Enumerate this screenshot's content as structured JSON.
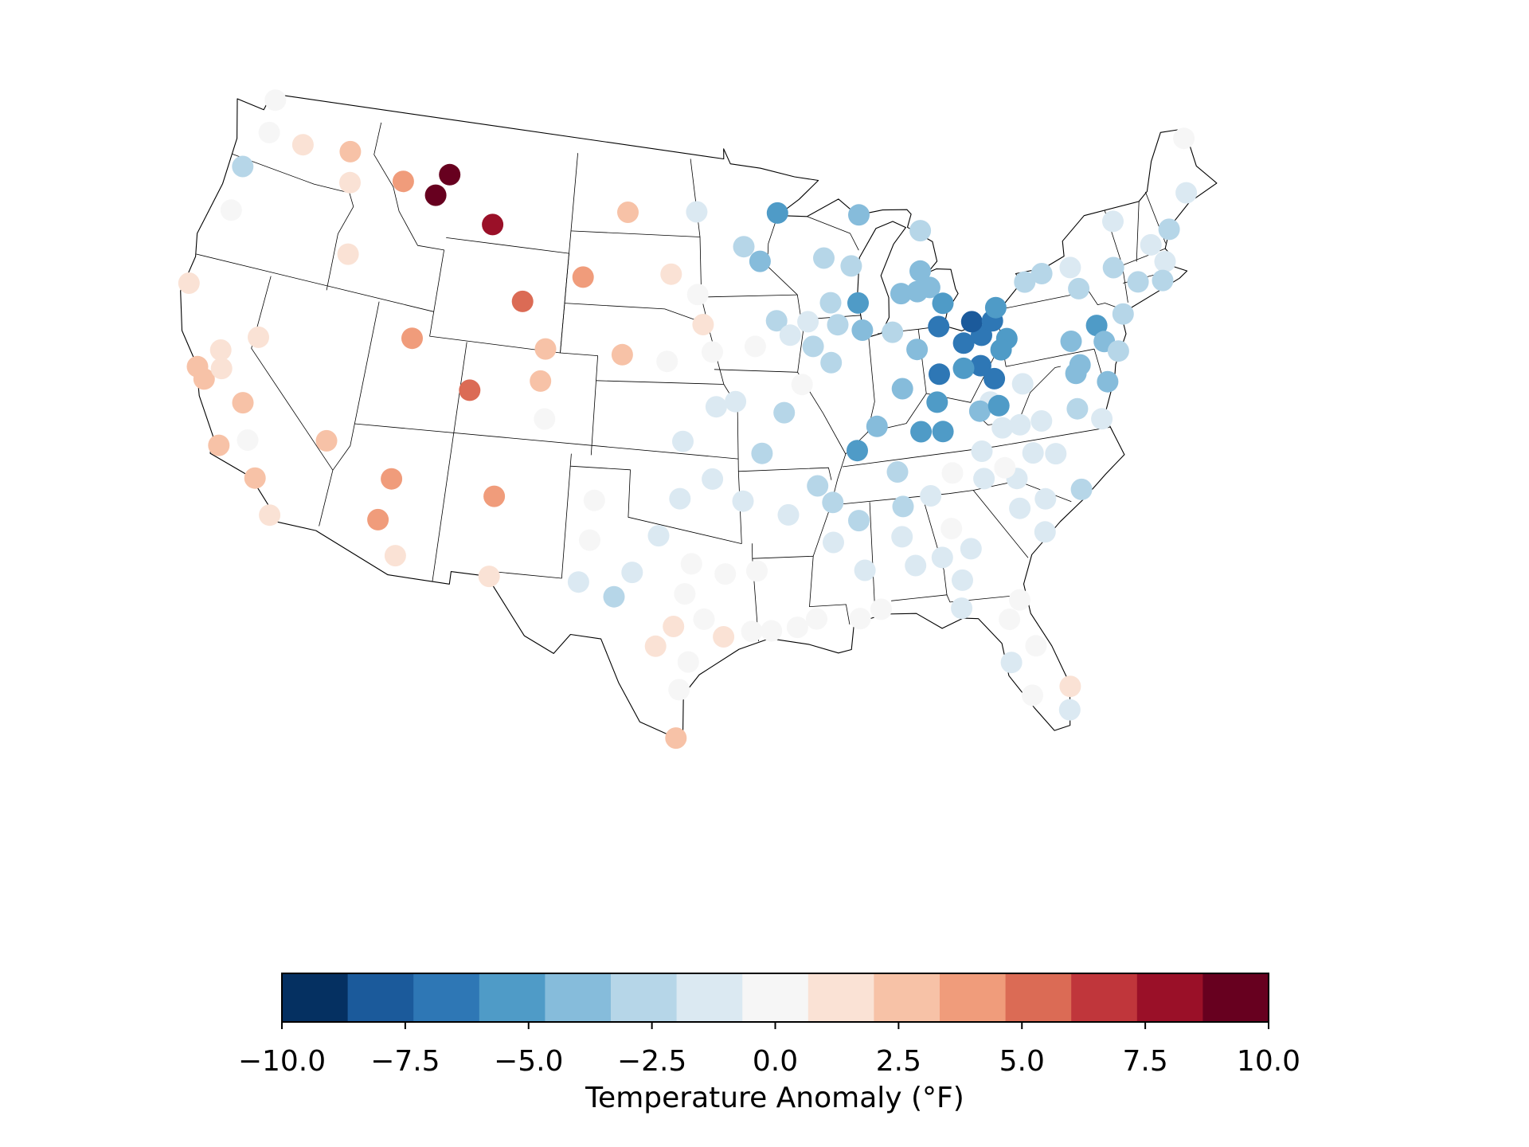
{
  "chart_data": {
    "type": "station-map",
    "lon": [
      -122.5,
      -122.3,
      -120.2,
      -117.4,
      -117.0,
      -123.2,
      -123.1,
      -116.2,
      -114.0,
      -111.4,
      -112.0,
      -108.5,
      -124.1,
      -119.8,
      -121.5,
      -122.4,
      -121.9,
      -121.2,
      -119.7,
      -120.3,
      -119.0,
      -118.2,
      -117.1,
      -115.2,
      -111.7,
      -112.0,
      -110.9,
      -111.9,
      -108.5,
      -106.3,
      -103.1,
      -100.8,
      -104.8,
      -104.9,
      -104.5,
      -106.6,
      -106.4,
      -100.7,
      -98.2,
      -96.7,
      -96.4,
      -95.9,
      -98.3,
      -96.8,
      -93.6,
      -95.7,
      -94.7,
      -97.4,
      -93.4,
      -92.2,
      -91.2,
      -101.7,
      -101.8,
      -97.5,
      -95.9,
      -94.4,
      -98.5,
      -102.2,
      -99.7,
      -100.5,
      -96.9,
      -97.2,
      -97.7,
      -98.5,
      -96.3,
      -95.4,
      -97.0,
      -97.4,
      -97.5,
      -95.3,
      -93.8,
      -94.1,
      -93.2,
      -92.0,
      -91.1,
      -89.1,
      -88.1,
      -92.2,
      -90.7,
      -90.0,
      -90.1,
      -88.8,
      -88.7,
      -88.6,
      -87.5,
      -86.7,
      -86.6,
      -86.8,
      -86.3,
      -85.0,
      -85.2,
      -84.0,
      -82.4,
      -82.5,
      -84.4,
      -83.6,
      -84.2,
      -84.4,
      -81.0,
      -80.9,
      -80.0,
      -79.7,
      -81.7,
      -82.3,
      -82.5,
      -81.3,
      -81.8,
      -80.1,
      -80.3,
      -81.4,
      -79.9,
      -78.8,
      -77.9,
      -81.6,
      -79.8,
      -79.2,
      -81.2,
      -92.1,
      -87.4,
      -94.1,
      -93.2,
      -89.6,
      -88.1,
      -89.4,
      -87.9,
      -92.4,
      -91.7,
      -90.7,
      -90.5,
      -89.1,
      -87.8,
      -89.6,
      -85.5,
      -84.6,
      -83.9,
      -84.3,
      -84.0,
      -83.3,
      -83.7,
      -86.2,
      -85.0,
      -86.0,
      -84.0,
      -84.3,
      -85.3,
      -84.2,
      -82.2,
      -81.2,
      -81.2,
      -81.8,
      -82.7,
      -82.5,
      -81.5,
      -81.9,
      -80.8,
      -80.5,
      -80.2,
      -80.6,
      -68.0,
      -68.8,
      -70.3,
      -71.5,
      -73.2,
      -71.0,
      -71.4,
      -72.7,
      -73.8,
      -76.1,
      -77.7,
      -78.7,
      -75.9,
      -73.9,
      -75.4,
      -76.9,
      -75.2,
      -74.6,
      -76.7,
      -77.0,
      -75.5,
      -77.3,
      -76.2,
      -80.3
    ],
    "lat": [
      48.8,
      47.5,
      47.4,
      47.6,
      46.4,
      45.9,
      44.1,
      43.6,
      46.9,
      47.5,
      46.6,
      45.8,
      40.8,
      39.5,
      38.6,
      37.7,
      37.3,
      37.9,
      36.8,
      34.9,
      35.4,
      34.0,
      32.7,
      36.1,
      35.1,
      33.4,
      32.1,
      40.8,
      39.1,
      42.9,
      44.1,
      46.8,
      41.1,
      39.8,
      38.3,
      35.0,
      31.8,
      41.1,
      44.4,
      43.6,
      42.4,
      41.3,
      40.9,
      46.9,
      41.5,
      39.1,
      39.3,
      37.7,
      37.2,
      38.8,
      39.9,
      35.2,
      33.6,
      35.4,
      36.2,
      35.3,
      33.9,
      31.9,
      32.4,
      31.4,
      32.8,
      31.6,
      30.3,
      29.5,
      30.6,
      29.9,
      28.9,
      27.8,
      25.9,
      32.4,
      32.5,
      30.1,
      30.1,
      30.2,
      30.5,
      30.4,
      30.7,
      34.7,
      35.8,
      35.1,
      33.5,
      34.3,
      32.3,
      37.1,
      38.0,
      36.1,
      34.7,
      33.5,
      32.3,
      32.5,
      35.0,
      35.8,
      36.5,
      35.4,
      33.6,
      32.7,
      31.5,
      30.4,
      34.0,
      35.2,
      32.9,
      34.2,
      30.4,
      29.7,
      28.0,
      28.5,
      26.6,
      26.7,
      25.8,
      35.7,
      36.1,
      35.9,
      34.3,
      38.4,
      38.9,
      37.3,
      37.3,
      46.8,
      46.5,
      45.5,
      44.9,
      44.9,
      44.5,
      43.1,
      43.0,
      42.5,
      41.9,
      42.4,
      41.4,
      42.2,
      41.9,
      40.7,
      43.2,
      43.2,
      43.3,
      44.0,
      45.6,
      42.6,
      41.7,
      41.7,
      40.9,
      39.4,
      39.8,
      38.7,
      37.6,
      37.5,
      38.1,
      38.2,
      39.3,
      39.9,
      39.9,
      40.9,
      41.1,
      41.7,
      41.6,
      42.1,
      40.8,
      40.4,
      46.9,
      44.8,
      43.6,
      43.2,
      44.5,
      42.4,
      41.7,
      41.9,
      42.7,
      43.1,
      43.1,
      42.9,
      42.2,
      40.8,
      40.6,
      40.2,
      39.9,
      39.4,
      39.2,
      38.9,
      38.3,
      37.5,
      36.9,
      37.3
    ],
    "values": [
      0.2,
      0.3,
      1.2,
      2.2,
      1.2,
      -2.7,
      0.1,
      1.0,
      4.2,
      9.4,
      9.3,
      7.9,
      1.2,
      1.1,
      1.0,
      2.0,
      2.3,
      1.0,
      2.6,
      2.4,
      0.2,
      2.3,
      1.3,
      2.3,
      4.0,
      4.3,
      1.4,
      4.3,
      5.5,
      5.5,
      4.2,
      2.4,
      2.3,
      2.4,
      0.3,
      4.0,
      1.6,
      2.6,
      1.2,
      0.2,
      1.3,
      0.3,
      0.2,
      -1.5,
      0.3,
      -1.4,
      -1.3,
      -1.6,
      -2.6,
      -2.4,
      0.2,
      0.2,
      0.1,
      -1.6,
      -1.5,
      -1.3,
      -2.0,
      -1.8,
      -2.0,
      -3.0,
      0.2,
      0.2,
      1.4,
      1.4,
      0.3,
      1.6,
      0.2,
      0.3,
      2.2,
      0.1,
      0.2,
      0.1,
      0.1,
      0.1,
      0.2,
      0.1,
      0.2,
      -1.4,
      -2.4,
      -3.0,
      -1.6,
      -2.7,
      -1.5,
      -5.0,
      -4.3,
      -2.6,
      -2.6,
      -1.6,
      -1.6,
      -1.6,
      -1.8,
      0.2,
      -1.6,
      -1.5,
      0.3,
      -1.4,
      -1.6,
      -1.4,
      -1.5,
      -1.5,
      -1.6,
      -1.5,
      0.3,
      0.2,
      -1.5,
      0.2,
      0.2,
      1.3,
      -1.3,
      0.3,
      -1.4,
      -1.4,
      -2.6,
      -1.4,
      -1.5,
      -1.6,
      -1.6,
      -5.0,
      -4.0,
      -3.0,
      -4.2,
      -3.0,
      -3.0,
      -3.0,
      -5.0,
      -3.0,
      -1.4,
      -1.4,
      -3.0,
      -3.0,
      -3.8,
      -3.0,
      -3.8,
      -3.8,
      -3.8,
      -3.8,
      -2.8,
      -5.0,
      -6.3,
      -2.6,
      -3.9,
      -3.8,
      -6.3,
      -5.2,
      -5.2,
      -5.2,
      -3.8,
      -5.2,
      -6.3,
      -6.3,
      -5.2,
      -6.5,
      -6.5,
      -7.8,
      -6.3,
      -5.2,
      -5.2,
      -5.0,
      0.3,
      -1.5,
      -2.4,
      -1.6,
      -1.5,
      -1.5,
      -2.5,
      -2.5,
      -2.5,
      -1.6,
      -2.5,
      -2.5,
      -2.5,
      -2.2,
      -5.0,
      -3.8,
      -3.8,
      -3.0,
      -3.8,
      -3.8,
      -4.2,
      -2.5,
      -1.8,
      -1.4
    ],
    "colorbar": {
      "label": "Temperature Anomaly (°F)",
      "lim": [
        -10,
        10
      ],
      "colors": [
        "#053061",
        "#1b5a9b",
        "#2e77b5",
        "#4f9bc7",
        "#86bcdb",
        "#b6d6e8",
        "#dbe9f2",
        "#f6f6f6",
        "#fae2d5",
        "#f7c2a7",
        "#f09c7b",
        "#db6b55",
        "#c0363b",
        "#9a1028",
        "#67001f"
      ],
      "ticks": [
        {
          "value": -10,
          "label": "−10.0"
        },
        {
          "value": -7.5,
          "label": "−7.5"
        },
        {
          "value": -5,
          "label": "−5.0"
        },
        {
          "value": -2.5,
          "label": "−2.5"
        },
        {
          "value": 0,
          "label": "0.0"
        },
        {
          "value": 2.5,
          "label": "2.5"
        },
        {
          "value": 5,
          "label": "5.0"
        },
        {
          "value": 7.5,
          "label": "7.5"
        },
        {
          "value": 10,
          "label": "10.0"
        }
      ]
    }
  }
}
